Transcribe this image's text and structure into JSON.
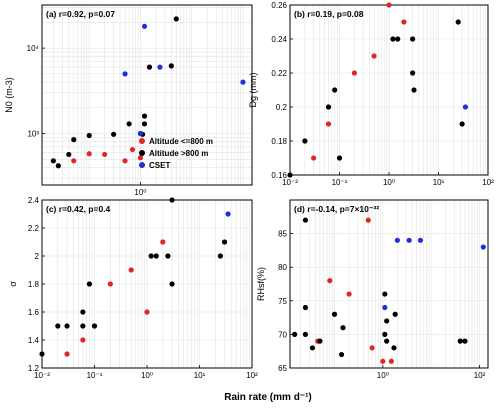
{
  "figure": {
    "xlabel": "Rain rate (mm d⁻¹)"
  },
  "colors": {
    "low": "#e3261f",
    "high": "#000000",
    "cset": "#1f2fe0"
  },
  "legend": {
    "placement": "lower-right of panel a",
    "items": [
      {
        "label": "Altitude <=800 m",
        "color": "#e3261f"
      },
      {
        "label": "Altitude >800 m",
        "color": "#000000"
      },
      {
        "label": "CSET",
        "color": "#1f2fe0"
      }
    ]
  },
  "chart_data": [
    {
      "type": "scatter",
      "panel": "a",
      "title": "(a) r=0.92, p=0.07",
      "ylabel": "N0 (m-3)",
      "xscale": "log",
      "yscale": "log",
      "xlim": [
        0.012,
        150
      ],
      "ylim": [
        250,
        32000
      ],
      "xticks": [
        {
          "v": 1,
          "label": "10⁰"
        }
      ],
      "yticks": [
        {
          "v": 1000,
          "label": "10³"
        },
        {
          "v": 10000,
          "label": "10⁴"
        }
      ],
      "grid": true,
      "series": [
        {
          "name": "Altitude <=800 m",
          "color": "low",
          "points": [
            [
              0.05,
              480
            ],
            [
              0.1,
              580
            ],
            [
              0.2,
              570
            ],
            [
              0.5,
              480
            ],
            [
              0.7,
              650
            ],
            [
              1.0,
              520
            ]
          ]
        },
        {
          "name": "Altitude >800 m",
          "color": "high",
          "points": [
            [
              0.02,
              480
            ],
            [
              0.025,
              420
            ],
            [
              0.04,
              570
            ],
            [
              0.05,
              850
            ],
            [
              0.1,
              950
            ],
            [
              0.3,
              980
            ],
            [
              0.6,
              1300
            ],
            [
              1.0,
              1000
            ],
            [
              1.1,
              980
            ],
            [
              1.2,
              1300
            ],
            [
              1.2,
              1600
            ],
            [
              1.5,
              6000
            ],
            [
              4,
              6200
            ],
            [
              5,
              22000
            ]
          ]
        },
        {
          "name": "CSET",
          "color": "cset",
          "points": [
            [
              0.5,
              5000
            ],
            [
              1.2,
              18000
            ],
            [
              2.4,
              6000
            ],
            [
              100,
              4000
            ],
            [
              1.0,
              1000
            ]
          ]
        }
      ]
    },
    {
      "type": "scatter",
      "panel": "b",
      "title": "(b) r=0.19, p=0.08",
      "ylabel": "Dg (mm)",
      "xscale": "log",
      "yscale": "linear",
      "xlim": [
        0.01,
        100
      ],
      "ylim": [
        0.16,
        0.26
      ],
      "xticks": [
        {
          "v": 0.01,
          "label": "10⁻²"
        },
        {
          "v": 0.1,
          "label": "10⁻¹"
        },
        {
          "v": 1,
          "label": "10⁰"
        },
        {
          "v": 10,
          "label": "10¹"
        },
        {
          "v": 100,
          "label": "10²"
        }
      ],
      "yticks": [
        {
          "v": 0.16,
          "label": "0.16"
        },
        {
          "v": 0.18,
          "label": "0.18"
        },
        {
          "v": 0.2,
          "label": "0.2"
        },
        {
          "v": 0.22,
          "label": "0.22"
        },
        {
          "v": 0.24,
          "label": "0.24"
        },
        {
          "v": 0.26,
          "label": "0.26"
        }
      ],
      "grid": true,
      "series": [
        {
          "name": "Altitude <=800 m",
          "color": "low",
          "points": [
            [
              0.03,
              0.17
            ],
            [
              0.06,
              0.19
            ],
            [
              0.2,
              0.22
            ],
            [
              0.5,
              0.23
            ],
            [
              1.0,
              0.26
            ],
            [
              2.0,
              0.25
            ]
          ]
        },
        {
          "name": "Altitude >800 m",
          "color": "high",
          "points": [
            [
              0.01,
              0.16
            ],
            [
              0.02,
              0.18
            ],
            [
              0.06,
              0.2
            ],
            [
              0.08,
              0.21
            ],
            [
              0.1,
              0.17
            ],
            [
              1.2,
              0.24
            ],
            [
              1.5,
              0.24
            ],
            [
              3,
              0.24
            ],
            [
              3,
              0.22
            ],
            [
              3.2,
              0.21
            ],
            [
              25,
              0.25
            ],
            [
              30,
              0.19
            ]
          ]
        },
        {
          "name": "CSET",
          "color": "cset",
          "points": [
            [
              35,
              0.2
            ]
          ]
        }
      ]
    },
    {
      "type": "scatter",
      "panel": "c",
      "title": "(c) r=0.42, p=0.4",
      "ylabel": "σ",
      "xscale": "log",
      "yscale": "linear",
      "xlim": [
        0.01,
        100
      ],
      "ylim": [
        1.2,
        2.4
      ],
      "xticks": [
        {
          "v": 0.01,
          "label": "10⁻²"
        },
        {
          "v": 0.1,
          "label": "10⁻¹"
        },
        {
          "v": 1,
          "label": "10⁰"
        },
        {
          "v": 10,
          "label": "10¹"
        },
        {
          "v": 100,
          "label": "10²"
        }
      ],
      "yticks": [
        {
          "v": 1.2,
          "label": "1.2"
        },
        {
          "v": 1.4,
          "label": "1.4"
        },
        {
          "v": 1.6,
          "label": "1.6"
        },
        {
          "v": 1.8,
          "label": "1.8"
        },
        {
          "v": 2.0,
          "label": "2"
        },
        {
          "v": 2.2,
          "label": "2.2"
        },
        {
          "v": 2.4,
          "label": "2.4"
        }
      ],
      "grid": true,
      "series": [
        {
          "name": "Altitude <=800 m",
          "color": "low",
          "points": [
            [
              0.03,
              1.3
            ],
            [
              0.06,
              1.4
            ],
            [
              0.2,
              1.8
            ],
            [
              0.5,
              1.9
            ],
            [
              1.0,
              1.6
            ],
            [
              2.0,
              2.1
            ]
          ]
        },
        {
          "name": "Altitude >800 m",
          "color": "high",
          "points": [
            [
              0.01,
              1.3
            ],
            [
              0.02,
              1.5
            ],
            [
              0.03,
              1.5
            ],
            [
              0.06,
              1.5
            ],
            [
              0.06,
              1.6
            ],
            [
              0.08,
              1.8
            ],
            [
              0.1,
              1.5
            ],
            [
              1.2,
              2.0
            ],
            [
              1.5,
              2.0
            ],
            [
              2.5,
              2.0
            ],
            [
              3,
              2.4
            ],
            [
              3,
              1.8
            ],
            [
              25,
              2.0
            ],
            [
              30,
              2.1
            ]
          ]
        },
        {
          "name": "CSET",
          "color": "cset",
          "points": [
            [
              35,
              2.3
            ]
          ]
        }
      ]
    },
    {
      "type": "scatter",
      "panel": "d",
      "title": "(d) r=-0.14, p=7×10⁻³²",
      "ylabel": "RHsf(%)",
      "xscale": "log",
      "yscale": "linear",
      "xlim": [
        0.012,
        150
      ],
      "ylim": [
        65,
        90
      ],
      "xticks": [
        {
          "v": 1,
          "label": "10⁰"
        },
        {
          "v": 100,
          "label": "10²"
        }
      ],
      "yticks": [
        {
          "v": 65,
          "label": "65"
        },
        {
          "v": 70,
          "label": "70"
        },
        {
          "v": 75,
          "label": "75"
        },
        {
          "v": 80,
          "label": "80"
        },
        {
          "v": 85,
          "label": "85"
        }
      ],
      "grid": true,
      "series": [
        {
          "name": "Altitude <=800 m",
          "color": "low",
          "points": [
            [
              0.045,
              69
            ],
            [
              0.08,
              78
            ],
            [
              0.2,
              76
            ],
            [
              0.5,
              87
            ],
            [
              0.6,
              68
            ],
            [
              1.0,
              66
            ],
            [
              1.5,
              66
            ]
          ]
        },
        {
          "name": "Altitude >800 m",
          "color": "high",
          "points": [
            [
              0.015,
              70
            ],
            [
              0.025,
              87
            ],
            [
              0.025,
              74
            ],
            [
              0.025,
              70
            ],
            [
              0.035,
              68
            ],
            [
              0.05,
              69
            ],
            [
              0.1,
              73
            ],
            [
              0.14,
              67
            ],
            [
              0.15,
              71
            ],
            [
              1.1,
              76
            ],
            [
              1.1,
              70
            ],
            [
              1.2,
              72
            ],
            [
              1.2,
              69
            ],
            [
              1.7,
              68
            ],
            [
              1.8,
              73
            ],
            [
              40,
              69
            ],
            [
              50,
              69
            ]
          ]
        },
        {
          "name": "CSET",
          "color": "cset",
          "points": [
            [
              1.1,
              74
            ],
            [
              2.0,
              84
            ],
            [
              3.5,
              84
            ],
            [
              6,
              84
            ],
            [
              120,
              83
            ]
          ]
        }
      ]
    }
  ]
}
